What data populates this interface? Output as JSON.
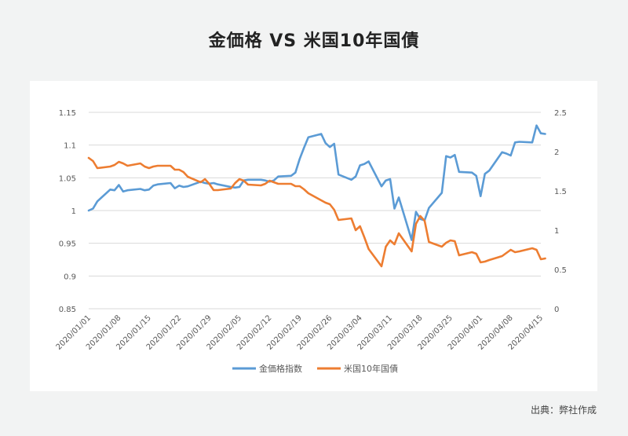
{
  "title": "金価格 VS 米国10年国債",
  "source": "出典：弊社作成",
  "chart_data": {
    "type": "line",
    "title": "金価格 VS 米国10年国債",
    "categories": [
      "2020/01/01",
      "2020/01/08",
      "2020/01/15",
      "2020/01/22",
      "2020/01/29",
      "2020/02/05",
      "2020/02/12",
      "2020/02/19",
      "2020/02/26",
      "2020/03/04",
      "2020/03/11",
      "2020/03/18",
      "2020/03/25",
      "2020/04/01",
      "2020/04/08",
      "2020/04/15"
    ],
    "y_left": {
      "ticks": [
        "0.85",
        "0.9",
        "0.95",
        "1",
        "1.05",
        "1.1",
        "1.15"
      ],
      "ylim": [
        0.85,
        1.15
      ]
    },
    "y_right": {
      "ticks": [
        "0",
        "0.5",
        "1",
        "1.5",
        "2",
        "2.5"
      ],
      "ylim": [
        0,
        2.5
      ]
    },
    "grid": true,
    "legend": "bottom",
    "colors": {
      "gold": "#5b9bd5",
      "bond": "#ed7d31",
      "grid": "#d9d9d9",
      "tick_text": "#595959"
    },
    "series": [
      {
        "name": "金価格指数",
        "axis": "left",
        "color": "#5b9bd5",
        "x": [
          "2020/01/01",
          "2020/01/02",
          "2020/01/03",
          "2020/01/06",
          "2020/01/07",
          "2020/01/08",
          "2020/01/09",
          "2020/01/10",
          "2020/01/13",
          "2020/01/14",
          "2020/01/15",
          "2020/01/16",
          "2020/01/17",
          "2020/01/20",
          "2020/01/21",
          "2020/01/22",
          "2020/01/23",
          "2020/01/24",
          "2020/01/27",
          "2020/01/28",
          "2020/01/29",
          "2020/01/30",
          "2020/01/31",
          "2020/02/03",
          "2020/02/04",
          "2020/02/05",
          "2020/02/06",
          "2020/02/07",
          "2020/02/10",
          "2020/02/11",
          "2020/02/12",
          "2020/02/13",
          "2020/02/14",
          "2020/02/17",
          "2020/02/18",
          "2020/02/19",
          "2020/02/20",
          "2020/02/21",
          "2020/02/24",
          "2020/02/25",
          "2020/02/26",
          "2020/02/27",
          "2020/02/28",
          "2020/03/02",
          "2020/03/03",
          "2020/03/04",
          "2020/03/05",
          "2020/03/06",
          "2020/03/09",
          "2020/03/10",
          "2020/03/11",
          "2020/03/12",
          "2020/03/13",
          "2020/03/16",
          "2020/03/17",
          "2020/03/18",
          "2020/03/19",
          "2020/03/20",
          "2020/03/23",
          "2020/03/24",
          "2020/03/25",
          "2020/03/26",
          "2020/03/27",
          "2020/03/30",
          "2020/03/31",
          "2020/04/01",
          "2020/04/02",
          "2020/04/03",
          "2020/04/06",
          "2020/04/07",
          "2020/04/08",
          "2020/04/09",
          "2020/04/10",
          "2020/04/13",
          "2020/04/14",
          "2020/04/15",
          "2020/04/16"
        ],
        "values": [
          1.0,
          1.003,
          1.014,
          1.032,
          1.031,
          1.039,
          1.029,
          1.031,
          1.033,
          1.031,
          1.032,
          1.038,
          1.04,
          1.042,
          1.034,
          1.038,
          1.036,
          1.037,
          1.044,
          1.042,
          1.041,
          1.042,
          1.04,
          1.036,
          1.035,
          1.036,
          1.046,
          1.047,
          1.047,
          1.046,
          1.044,
          1.046,
          1.052,
          1.053,
          1.058,
          1.079,
          1.096,
          1.112,
          1.117,
          1.103,
          1.097,
          1.102,
          1.055,
          1.047,
          1.052,
          1.069,
          1.071,
          1.075,
          1.037,
          1.046,
          1.048,
          1.003,
          1.02,
          0.955,
          0.998,
          0.987,
          0.985,
          1.004,
          1.027,
          1.083,
          1.081,
          1.085,
          1.059,
          1.058,
          1.053,
          1.022,
          1.056,
          1.061,
          1.089,
          1.087,
          1.084,
          1.104,
          1.105,
          1.104,
          1.13,
          1.118,
          1.117
        ]
      },
      {
        "name": "米国10年国債",
        "axis": "right",
        "color": "#ed7d31",
        "x": [
          "2020/01/01",
          "2020/01/02",
          "2020/01/03",
          "2020/01/06",
          "2020/01/07",
          "2020/01/08",
          "2020/01/09",
          "2020/01/10",
          "2020/01/13",
          "2020/01/14",
          "2020/01/15",
          "2020/01/16",
          "2020/01/17",
          "2020/01/20",
          "2020/01/21",
          "2020/01/22",
          "2020/01/23",
          "2020/01/24",
          "2020/01/27",
          "2020/01/28",
          "2020/01/29",
          "2020/01/30",
          "2020/01/31",
          "2020/02/03",
          "2020/02/04",
          "2020/02/05",
          "2020/02/06",
          "2020/02/07",
          "2020/02/10",
          "2020/02/11",
          "2020/02/12",
          "2020/02/13",
          "2020/02/14",
          "2020/02/17",
          "2020/02/18",
          "2020/02/19",
          "2020/02/20",
          "2020/02/21",
          "2020/02/24",
          "2020/02/25",
          "2020/02/26",
          "2020/02/27",
          "2020/02/28",
          "2020/03/02",
          "2020/03/03",
          "2020/03/04",
          "2020/03/05",
          "2020/03/06",
          "2020/03/09",
          "2020/03/10",
          "2020/03/11",
          "2020/03/12",
          "2020/03/13",
          "2020/03/16",
          "2020/03/17",
          "2020/03/18",
          "2020/03/19",
          "2020/03/20",
          "2020/03/23",
          "2020/03/24",
          "2020/03/25",
          "2020/03/26",
          "2020/03/27",
          "2020/03/30",
          "2020/03/31",
          "2020/04/01",
          "2020/04/02",
          "2020/04/03",
          "2020/04/06",
          "2020/04/07",
          "2020/04/08",
          "2020/04/09",
          "2020/04/10",
          "2020/04/13",
          "2020/04/14",
          "2020/04/15",
          "2020/04/16"
        ],
        "values": [
          1.92,
          1.88,
          1.79,
          1.81,
          1.83,
          1.87,
          1.85,
          1.82,
          1.85,
          1.81,
          1.79,
          1.81,
          1.82,
          1.82,
          1.77,
          1.77,
          1.74,
          1.68,
          1.61,
          1.65,
          1.59,
          1.51,
          1.51,
          1.53,
          1.6,
          1.65,
          1.63,
          1.58,
          1.57,
          1.59,
          1.63,
          1.61,
          1.59,
          1.59,
          1.56,
          1.56,
          1.52,
          1.47,
          1.38,
          1.35,
          1.33,
          1.26,
          1.13,
          1.15,
          1.0,
          1.05,
          0.91,
          0.76,
          0.54,
          0.79,
          0.87,
          0.82,
          0.96,
          0.73,
          1.08,
          1.18,
          1.12,
          0.85,
          0.79,
          0.84,
          0.87,
          0.86,
          0.68,
          0.72,
          0.7,
          0.59,
          0.6,
          0.62,
          0.67,
          0.71,
          0.75,
          0.72,
          0.73,
          0.77,
          0.75,
          0.63,
          0.64
        ]
      }
    ]
  }
}
